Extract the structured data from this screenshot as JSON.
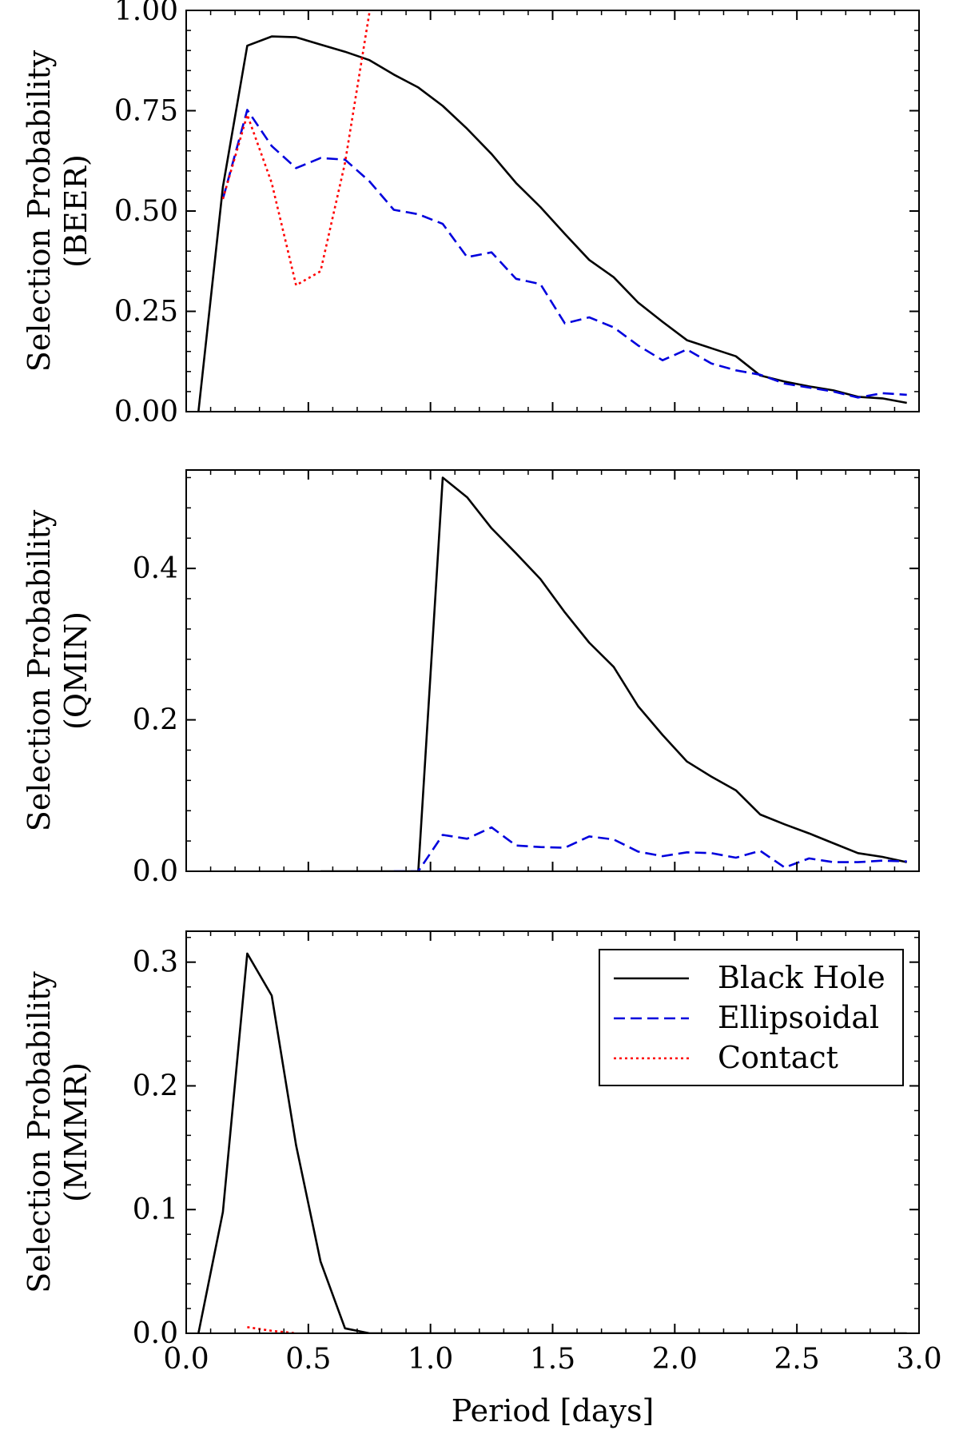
{
  "chart_data": [
    {
      "type": "line",
      "ylabel_line1": "Selection Probability",
      "ylabel_line2": "(BEER)",
      "xlim": [
        0.0,
        3.0
      ],
      "ylim": [
        0.0,
        1.0
      ],
      "yticks": [
        0.0,
        0.25,
        0.5,
        0.75,
        1.0
      ],
      "ytick_labels": [
        "0.00",
        "0.25",
        "0.50",
        "0.75",
        "1.00"
      ],
      "xticks": [
        0.0,
        0.5,
        1.0,
        1.5,
        2.0,
        2.5,
        3.0
      ],
      "show_xtick_labels": false,
      "series": [
        {
          "name": "Black Hole",
          "color": "#000000",
          "dash": "solid",
          "x": [
            0.05,
            0.15,
            0.25,
            0.35,
            0.45,
            0.55,
            0.65,
            0.75,
            0.85,
            0.95,
            1.05,
            1.15,
            1.25,
            1.35,
            1.45,
            1.55,
            1.65,
            1.75,
            1.85,
            1.95,
            2.05,
            2.15,
            2.25,
            2.35,
            2.45,
            2.55,
            2.65,
            2.75,
            2.85,
            2.95
          ],
          "values": [
            0.0,
            0.56,
            0.912,
            0.935,
            0.933,
            0.915,
            0.897,
            0.876,
            0.84,
            0.808,
            0.762,
            0.705,
            0.642,
            0.57,
            0.51,
            0.443,
            0.378,
            0.335,
            0.272,
            0.224,
            0.178,
            0.158,
            0.138,
            0.09,
            0.075,
            0.063,
            0.053,
            0.037,
            0.033,
            0.022
          ]
        },
        {
          "name": "Ellipsoidal",
          "color": "#0000dd",
          "dash": "dashed",
          "x": [
            0.15,
            0.25,
            0.35,
            0.45,
            0.55,
            0.65,
            0.75,
            0.85,
            0.95,
            1.05,
            1.15,
            1.25,
            1.35,
            1.45,
            1.55,
            1.65,
            1.75,
            1.85,
            1.95,
            2.05,
            2.15,
            2.25,
            2.35,
            2.45,
            2.55,
            2.65,
            2.75,
            2.85,
            2.95
          ],
          "values": [
            0.53,
            0.752,
            0.662,
            0.607,
            0.632,
            0.628,
            0.574,
            0.503,
            0.492,
            0.468,
            0.385,
            0.397,
            0.331,
            0.318,
            0.22,
            0.235,
            0.21,
            0.165,
            0.128,
            0.155,
            0.12,
            0.103,
            0.092,
            0.07,
            0.06,
            0.05,
            0.035,
            0.046,
            0.042
          ]
        },
        {
          "name": "Contact",
          "color": "#ff0000",
          "dash": "dotted",
          "x": [
            0.15,
            0.25,
            0.35,
            0.45,
            0.55,
            0.65,
            0.75
          ],
          "values": [
            0.53,
            0.74,
            0.57,
            0.315,
            0.35,
            0.62,
            0.995
          ]
        }
      ]
    },
    {
      "type": "line",
      "ylabel_line1": "Selection Probability",
      "ylabel_line2": "(QMIN)",
      "xlim": [
        0.0,
        3.0
      ],
      "ylim": [
        0.0,
        0.53
      ],
      "yticks": [
        0.0,
        0.2,
        0.4
      ],
      "ytick_labels": [
        "0.0",
        "0.2",
        "0.4"
      ],
      "xticks": [
        0.0,
        0.5,
        1.0,
        1.5,
        2.0,
        2.5,
        3.0
      ],
      "show_xtick_labels": false,
      "series": [
        {
          "name": "Black Hole",
          "color": "#000000",
          "dash": "solid",
          "x": [
            0.55,
            0.65,
            0.75,
            0.85,
            0.95,
            1.05,
            1.15,
            1.25,
            1.35,
            1.45,
            1.55,
            1.65,
            1.75,
            1.85,
            1.95,
            2.05,
            2.15,
            2.25,
            2.35,
            2.45,
            2.55,
            2.65,
            2.75,
            2.85,
            2.95
          ],
          "values": [
            0.0,
            0.0,
            0.0,
            0.0,
            0.0,
            0.52,
            0.494,
            0.453,
            0.42,
            0.386,
            0.342,
            0.302,
            0.27,
            0.218,
            0.18,
            0.145,
            0.125,
            0.107,
            0.075,
            0.062,
            0.05,
            0.037,
            0.024,
            0.019,
            0.012
          ]
        },
        {
          "name": "Ellipsoidal",
          "color": "#0000dd",
          "dash": "dashed",
          "x": [
            0.85,
            0.95,
            1.05,
            1.15,
            1.25,
            1.35,
            1.45,
            1.55,
            1.65,
            1.75,
            1.85,
            1.95,
            2.05,
            2.15,
            2.25,
            2.35,
            2.45,
            2.55,
            2.65,
            2.75,
            2.85,
            2.95
          ],
          "values": [
            0.0,
            0.0,
            0.048,
            0.043,
            0.058,
            0.034,
            0.032,
            0.031,
            0.046,
            0.042,
            0.026,
            0.02,
            0.025,
            0.024,
            0.018,
            0.027,
            0.005,
            0.017,
            0.012,
            0.012,
            0.014,
            0.013
          ]
        }
      ]
    },
    {
      "type": "line",
      "ylabel_line1": "Selection Probability",
      "ylabel_line2": "(MMMR)",
      "xlabel": "Period [days]",
      "xlim": [
        0.0,
        3.0
      ],
      "ylim": [
        0.0,
        0.325
      ],
      "yticks": [
        0.0,
        0.1,
        0.2,
        0.3
      ],
      "ytick_labels": [
        "0.0",
        "0.1",
        "0.2",
        "0.3"
      ],
      "xticks": [
        0.0,
        0.5,
        1.0,
        1.5,
        2.0,
        2.5,
        3.0
      ],
      "xtick_labels": [
        "0.0",
        "0.5",
        "1.0",
        "1.5",
        "2.0",
        "2.5",
        "3.0"
      ],
      "show_xtick_labels": true,
      "legend": {
        "position": "upper-right",
        "entries": [
          {
            "label": "Black Hole",
            "color": "#000000",
            "dash": "solid"
          },
          {
            "label": "Ellipsoidal",
            "color": "#0000dd",
            "dash": "dashed"
          },
          {
            "label": "Contact",
            "color": "#ff0000",
            "dash": "dotted"
          }
        ]
      },
      "series": [
        {
          "name": "Black Hole",
          "color": "#000000",
          "dash": "solid",
          "x": [
            0.05,
            0.15,
            0.25,
            0.35,
            0.45,
            0.55,
            0.65,
            0.75,
            0.85,
            0.95,
            1.05,
            1.15,
            1.25,
            1.35,
            1.45,
            1.55,
            1.65,
            1.75,
            1.85,
            1.95,
            2.05,
            2.15,
            2.25,
            2.35,
            2.45,
            2.55,
            2.65,
            2.75,
            2.85,
            2.95
          ],
          "values": [
            0.0,
            0.098,
            0.307,
            0.273,
            0.152,
            0.058,
            0.004,
            0.0,
            0.0,
            0.0,
            0.0,
            0.0,
            0.0,
            0.0,
            0.0,
            0.0,
            0.0,
            0.0,
            0.0,
            0.0,
            0.0,
            0.0,
            0.0,
            0.0,
            0.0,
            0.0,
            0.0,
            0.0,
            0.0,
            0.0
          ]
        },
        {
          "name": "Contact",
          "color": "#ff0000",
          "dash": "dotted",
          "x": [
            0.25,
            0.35,
            0.45
          ],
          "values": [
            0.005,
            0.002,
            0.0
          ]
        }
      ]
    }
  ]
}
